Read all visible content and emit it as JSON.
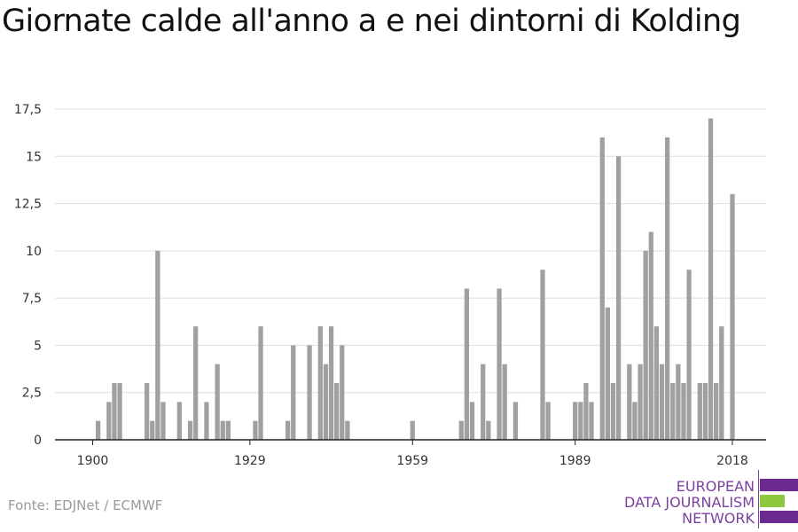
{
  "title": "Giornate calde all'anno a e nei dintorni di Kolding",
  "source": "Fonte: EDJNet / ECMWF",
  "logo": {
    "lines": [
      "EUROPEAN",
      "DATA JOURNALISM",
      "NETWORK"
    ],
    "colors": {
      "purple": "#6a2a91",
      "green": "#8ec83f"
    }
  },
  "colors": {
    "bar": "#a0a0a0",
    "grid": "#dddddd",
    "axis": "#222222"
  },
  "chart_data": {
    "type": "bar",
    "title": "Giornate calde all'anno a e nei dintorni di Kolding",
    "xlabel": "",
    "ylabel": "",
    "ylim": [
      0,
      17.5
    ],
    "xlim": [
      1900,
      2018
    ],
    "y_ticks": [
      0,
      2.5,
      5,
      7.5,
      10,
      12.5,
      15,
      17.5
    ],
    "y_tick_labels": [
      "0",
      "2,5",
      "5",
      "7,5",
      "10",
      "12,5",
      "15",
      "17,5"
    ],
    "x_ticks": [
      1900,
      1929,
      1959,
      1989,
      2018
    ],
    "x_tick_labels": [
      "1900",
      "1929",
      "1959",
      "1989",
      "2018"
    ],
    "grid": true,
    "legend": "none",
    "categories": [
      1900,
      1901,
      1902,
      1903,
      1904,
      1905,
      1906,
      1907,
      1908,
      1909,
      1910,
      1911,
      1912,
      1913,
      1914,
      1915,
      1916,
      1917,
      1918,
      1919,
      1920,
      1921,
      1922,
      1923,
      1924,
      1925,
      1926,
      1927,
      1928,
      1929,
      1930,
      1931,
      1932,
      1933,
      1934,
      1935,
      1936,
      1937,
      1938,
      1939,
      1940,
      1941,
      1942,
      1943,
      1944,
      1945,
      1946,
      1947,
      1948,
      1949,
      1950,
      1951,
      1952,
      1953,
      1954,
      1955,
      1956,
      1957,
      1958,
      1959,
      1960,
      1961,
      1962,
      1963,
      1964,
      1965,
      1966,
      1967,
      1968,
      1969,
      1970,
      1971,
      1972,
      1973,
      1974,
      1975,
      1976,
      1977,
      1978,
      1979,
      1980,
      1981,
      1982,
      1983,
      1984,
      1985,
      1986,
      1987,
      1988,
      1989,
      1990,
      1991,
      1992,
      1993,
      1994,
      1995,
      1996,
      1997,
      1998,
      1999,
      2000,
      2001,
      2002,
      2003,
      2004,
      2005,
      2006,
      2007,
      2008,
      2009,
      2010,
      2011,
      2012,
      2013,
      2014,
      2015,
      2016,
      2017,
      2018
    ],
    "values": [
      0,
      1,
      0,
      2,
      3,
      3,
      0,
      0,
      0,
      0,
      3,
      1,
      10,
      2,
      0,
      0,
      2,
      0,
      1,
      6,
      0,
      2,
      0,
      4,
      1,
      1,
      0,
      0,
      0,
      0,
      1,
      6,
      0,
      0,
      0,
      0,
      1,
      5,
      0,
      0,
      5,
      0,
      6,
      4,
      6,
      3,
      5,
      1,
      0,
      0,
      0,
      0,
      0,
      0,
      0,
      0,
      0,
      0,
      0,
      1,
      0,
      0,
      0,
      0,
      0,
      0,
      0,
      0,
      1,
      8,
      2,
      0,
      4,
      1,
      0,
      8,
      4,
      0,
      2,
      0,
      0,
      0,
      0,
      9,
      2,
      0,
      0,
      0,
      0,
      2,
      2,
      3,
      2,
      0,
      16,
      7,
      3,
      15,
      0,
      4,
      2,
      4,
      10,
      11,
      6,
      4,
      16,
      3,
      4,
      3,
      9,
      0,
      3,
      3,
      17,
      3,
      6,
      0,
      13
    ]
  }
}
